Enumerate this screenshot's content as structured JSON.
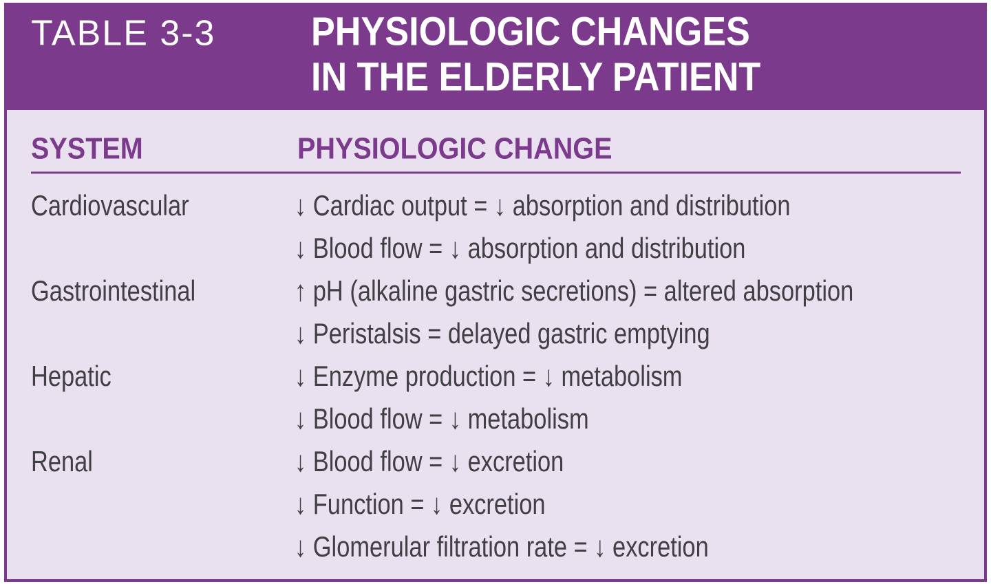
{
  "label": "TABLE 3-3",
  "title": [
    "PHYSIOLOGIC CHANGES",
    "IN THE ELDERLY PATIENT"
  ],
  "table": {
    "header": [
      "SYSTEM",
      "PHYSIOLOGIC CHANGE"
    ],
    "rows": [
      {
        "system": "Cardiovascular",
        "changes": [
          "↓ Cardiac output = ↓ absorption and distribution",
          "↓ Blood flow = ↓ absorption and distribution"
        ]
      },
      {
        "system": "Gastrointestinal",
        "changes": [
          "↑ pH (alkaline gastric secretions) = altered absorption",
          "↓ Peristalsis = delayed gastric emptying"
        ]
      },
      {
        "system": "Hepatic",
        "changes": [
          "↓ Enzyme production = ↓ metabolism",
          "↓ Blood flow = ↓ metabolism"
        ]
      },
      {
        "system": "Renal",
        "changes": [
          "↓ Blood flow = ↓ excretion",
          "↓ Function = ↓ excretion",
          "↓ Glomerular filtration rate = ↓ excretion"
        ]
      }
    ]
  }
}
